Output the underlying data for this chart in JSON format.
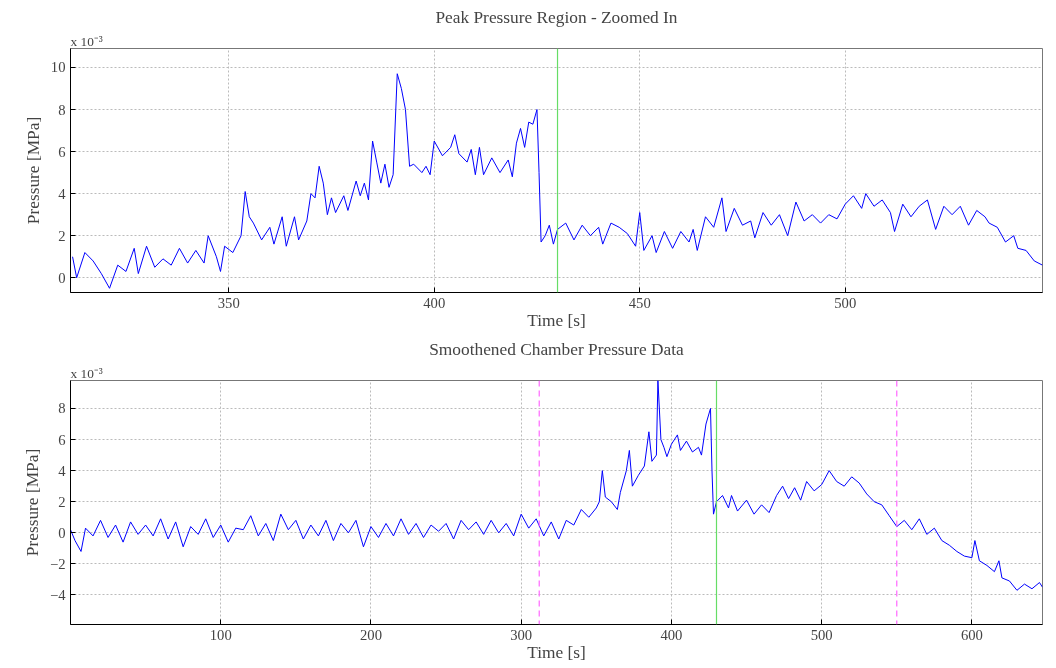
{
  "chart_data": [
    {
      "type": "line",
      "title": "Peak Pressure Region - Zoomed In",
      "xlabel": "Time [s]",
      "ylabel": "Pressure [MPa]",
      "annotations": [
        "x 10⁻³"
      ],
      "grid": true,
      "xlim": [
        311.5,
        548
      ],
      "ylim": [
        -0.7,
        10.9
      ],
      "xticks": [
        350,
        400,
        450,
        500
      ],
      "yticks": [
        0,
        2,
        4,
        6,
        8,
        10
      ],
      "ref_lines": [
        {
          "axis": "x",
          "value": 430,
          "color": "#66dd66",
          "line_style": "solid"
        }
      ],
      "series": [
        {
          "color": "#0000ff",
          "x": [
            312,
            313,
            315,
            317,
            319,
            321,
            323,
            325,
            327,
            328,
            330,
            332,
            334,
            336,
            338,
            340,
            342,
            344,
            345,
            347,
            348,
            349,
            351,
            353,
            354,
            355,
            356,
            358,
            360,
            361,
            363,
            364,
            366,
            367,
            369,
            370,
            371,
            372,
            373,
            374,
            375,
            376,
            378,
            379,
            381,
            382,
            383,
            384,
            385,
            386,
            387,
            388,
            389,
            390,
            391,
            392,
            393,
            394,
            395,
            397,
            398,
            399,
            400,
            402,
            404,
            405,
            406,
            408,
            409,
            410,
            411,
            412,
            414,
            416,
            418,
            419,
            420,
            421,
            422,
            423,
            424,
            425,
            425.5,
            426,
            427,
            428,
            429,
            430,
            432,
            434,
            436,
            438,
            440,
            441,
            443,
            445,
            447,
            449,
            450,
            451,
            453,
            454,
            456,
            458,
            460,
            462,
            463,
            464,
            466,
            468,
            470,
            471,
            473,
            475,
            477,
            478,
            480,
            482,
            484,
            486,
            488,
            490,
            492,
            494,
            496,
            498,
            500,
            502,
            504,
            505,
            507,
            509,
            511,
            512,
            514,
            516,
            518,
            520,
            522,
            524,
            526,
            528,
            530,
            532,
            534,
            535,
            537,
            539,
            541,
            542,
            544,
            546,
            548
          ],
          "values": [
            1.0,
            0.0,
            1.2,
            0.8,
            0.2,
            -0.5,
            0.6,
            0.3,
            1.4,
            0.2,
            1.5,
            0.5,
            0.9,
            0.6,
            1.4,
            0.7,
            1.3,
            0.7,
            2.0,
            1.0,
            0.3,
            1.5,
            1.2,
            2.0,
            4.1,
            2.9,
            2.6,
            1.8,
            2.4,
            1.6,
            2.9,
            1.5,
            2.9,
            1.8,
            2.7,
            4.0,
            3.8,
            5.3,
            4.5,
            3.0,
            3.8,
            3.1,
            3.9,
            3.2,
            4.6,
            3.9,
            4.5,
            3.7,
            6.5,
            5.5,
            4.5,
            5.4,
            4.3,
            4.9,
            9.7,
            9.0,
            8.0,
            5.3,
            5.4,
            5.0,
            5.3,
            4.9,
            6.5,
            5.8,
            6.2,
            6.8,
            5.9,
            5.5,
            6.1,
            4.9,
            6.2,
            4.9,
            5.7,
            5.0,
            5.6,
            4.8,
            6.4,
            7.1,
            6.2,
            7.4,
            7.3,
            8.0,
            5.0,
            1.7,
            2.0,
            2.5,
            1.6,
            2.3,
            2.6,
            1.8,
            2.5,
            2.0,
            2.4,
            1.6,
            2.6,
            2.4,
            2.1,
            1.5,
            3.1,
            1.3,
            2.0,
            1.2,
            2.2,
            1.4,
            2.2,
            1.7,
            2.3,
            1.3,
            2.9,
            2.4,
            3.8,
            2.2,
            3.3,
            2.5,
            2.7,
            1.9,
            3.1,
            2.5,
            3.0,
            2.0,
            3.6,
            2.7,
            3.0,
            2.6,
            3.0,
            2.8,
            3.5,
            3.9,
            3.3,
            4.0,
            3.4,
            3.7,
            3.1,
            2.2,
            3.5,
            2.9,
            3.4,
            3.7,
            2.3,
            3.4,
            3.0,
            3.4,
            2.5,
            3.2,
            2.9,
            2.6,
            2.4,
            1.7,
            2.0,
            1.4,
            1.3,
            0.8,
            0.6
          ]
        }
      ]
    },
    {
      "type": "line",
      "title": "Smoothened Chamber Pressure Data",
      "xlabel": "Time [s]",
      "ylabel": "Pressure [MPa]",
      "annotations": [
        "x 10⁻³"
      ],
      "grid": true,
      "xlim": [
        0,
        647
      ],
      "ylim": [
        -5.9,
        9.8
      ],
      "xticks": [
        100,
        200,
        300,
        400,
        500,
        600
      ],
      "yticks": [
        -4,
        -2,
        0,
        2,
        4,
        6,
        8
      ],
      "ref_lines": [
        {
          "axis": "x",
          "value": 312,
          "color": "#ff66ff",
          "line_style": "dashed"
        },
        {
          "axis": "x",
          "value": 430,
          "color": "#66dd66",
          "line_style": "solid"
        },
        {
          "axis": "x",
          "value": 550,
          "color": "#ff66ff",
          "line_style": "dashed"
        }
      ],
      "series": [
        {
          "color": "#0000ff",
          "x": [
            0,
            3,
            7,
            10,
            15,
            20,
            25,
            30,
            35,
            40,
            45,
            50,
            55,
            60,
            65,
            70,
            75,
            80,
            85,
            90,
            95,
            100,
            105,
            110,
            115,
            120,
            125,
            130,
            135,
            140,
            145,
            150,
            155,
            160,
            165,
            170,
            175,
            180,
            185,
            190,
            195,
            200,
            205,
            210,
            215,
            220,
            225,
            230,
            235,
            240,
            245,
            250,
            255,
            260,
            265,
            270,
            275,
            280,
            285,
            290,
            295,
            300,
            305,
            310,
            315,
            320,
            325,
            330,
            335,
            340,
            345,
            350,
            352,
            354,
            356,
            360,
            364,
            366,
            370,
            372,
            374,
            378,
            382,
            385,
            387,
            390,
            391,
            393,
            395,
            397,
            400,
            404,
            406,
            410,
            414,
            418,
            420,
            423,
            426,
            427,
            428,
            430,
            434,
            438,
            440,
            444,
            450,
            455,
            460,
            465,
            470,
            474,
            478,
            482,
            486,
            490,
            495,
            500,
            505,
            510,
            515,
            520,
            525,
            530,
            535,
            540,
            545,
            550,
            555,
            560,
            565,
            570,
            575,
            580,
            585,
            590,
            595,
            600,
            602,
            605,
            610,
            615,
            618,
            620,
            625,
            630,
            635,
            640,
            645,
            647
          ],
          "values": [
            0.2,
            -0.5,
            -1.2,
            0.3,
            -0.2,
            0.8,
            -0.3,
            0.5,
            -0.6,
            0.7,
            -0.1,
            0.5,
            -0.2,
            0.9,
            -0.4,
            0.7,
            -0.9,
            0.4,
            -0.1,
            0.9,
            -0.3,
            0.5,
            -0.6,
            0.3,
            0.2,
            1.1,
            -0.2,
            0.6,
            -0.5,
            1.2,
            0.2,
            0.8,
            -0.4,
            0.5,
            -0.2,
            0.8,
            -0.5,
            0.6,
            0.0,
            0.8,
            -0.9,
            0.4,
            -0.3,
            0.6,
            -0.2,
            0.9,
            -0.1,
            0.6,
            -0.3,
            0.5,
            0.1,
            0.6,
            -0.4,
            0.8,
            0.2,
            0.7,
            -0.1,
            0.8,
            0.0,
            0.6,
            -0.2,
            1.2,
            0.3,
            0.9,
            -0.2,
            0.7,
            -0.4,
            0.8,
            0.5,
            1.5,
            1.0,
            1.6,
            2.0,
            4.0,
            2.3,
            2.0,
            1.5,
            2.6,
            4.0,
            5.3,
            3.0,
            3.7,
            4.3,
            6.5,
            4.6,
            5.0,
            9.8,
            6.0,
            5.5,
            4.9,
            5.7,
            6.3,
            5.3,
            5.9,
            5.2,
            5.5,
            5.0,
            7.0,
            8.0,
            4.0,
            1.2,
            2.0,
            2.4,
            1.6,
            2.4,
            1.4,
            2.1,
            1.2,
            1.8,
            1.3,
            2.4,
            3.0,
            2.2,
            2.9,
            2.1,
            3.3,
            2.7,
            3.1,
            4.0,
            3.3,
            3.0,
            3.6,
            3.2,
            2.5,
            2.0,
            1.8,
            1.1,
            0.4,
            0.8,
            0.2,
            0.9,
            -0.1,
            0.3,
            -0.5,
            -0.8,
            -1.2,
            -1.5,
            -1.6,
            -0.5,
            -1.8,
            -2.1,
            -2.5,
            -1.8,
            -2.9,
            -3.1,
            -3.7,
            -3.3,
            -3.6,
            -3.2,
            -3.5
          ]
        }
      ]
    }
  ]
}
